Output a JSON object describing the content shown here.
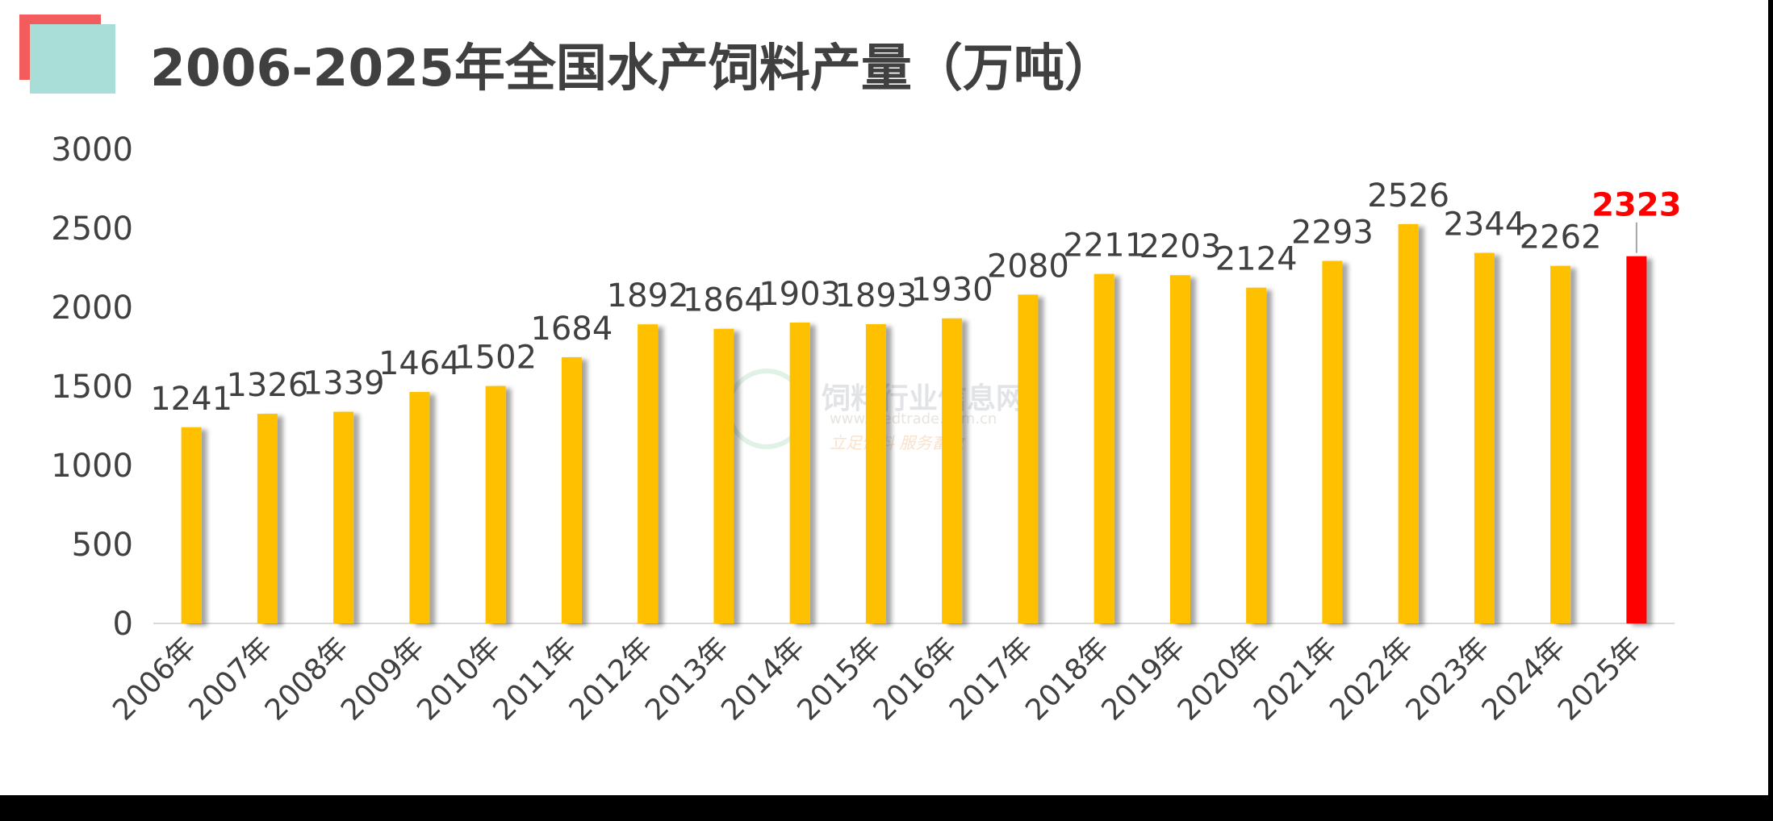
{
  "title": "2006-2025年全国水产饲料产量（万吨）",
  "colors": {
    "bar": "#FFC000",
    "highlight_bar": "#FF0000",
    "highlight_label": "#FF0000",
    "text": "#404040",
    "axis": "#d9d9d9"
  },
  "watermark": {
    "name": "饲料行业信息网",
    "url": "www.feedtrade.com.cn",
    "slogan": "立足饲料 服务畜牧"
  },
  "chart_data": {
    "type": "bar",
    "categories": [
      "2006年",
      "2007年",
      "2008年",
      "2009年",
      "2010年",
      "2011年",
      "2012年",
      "2013年",
      "2014年",
      "2015年",
      "2016年",
      "2017年",
      "2018年",
      "2019年",
      "2020年",
      "2021年",
      "2022年",
      "2023年",
      "2024年",
      "2025年"
    ],
    "values": [
      1241,
      1326,
      1339,
      1464,
      1502,
      1684,
      1892,
      1864,
      1903,
      1893,
      1930,
      2080,
      2211,
      2203,
      2124,
      2293,
      2526,
      2344,
      2262,
      2323
    ],
    "value_labels": [
      "1241",
      "1326",
      "1339",
      "1464",
      "1502",
      "1684",
      "1892",
      "1864",
      "1903",
      "1893",
      "1930",
      "2080",
      "2211",
      "2203",
      "2124",
      "2293",
      "2526",
      "2344",
      "2262",
      "2323"
    ],
    "highlight_index": 19,
    "y_ticks": [
      "0",
      "500",
      "1000",
      "1500",
      "2000",
      "2500",
      "3000"
    ],
    "ylim": [
      0,
      3000
    ],
    "grid": false,
    "legend": "none"
  }
}
